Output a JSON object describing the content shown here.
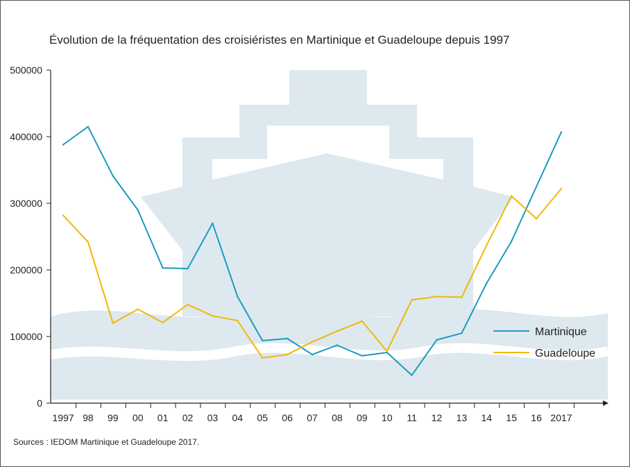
{
  "chart_data": {
    "type": "line",
    "title": "Évolution de la fréquentation des croisiéristes en Martinique et Guadeloupe depuis 1997",
    "source": "Sources : IEDOM Martinique et Guadeloupe 2017.",
    "x": [
      "1997",
      "98",
      "99",
      "00",
      "01",
      "02",
      "03",
      "04",
      "05",
      "06",
      "07",
      "08",
      "09",
      "10",
      "11",
      "12",
      "13",
      "14",
      "15",
      "16",
      "2017"
    ],
    "y_ticks": [
      "0",
      "100000",
      "200000",
      "300000",
      "400000",
      "500000"
    ],
    "ylim": [
      0,
      500000
    ],
    "grid": false,
    "legend_position": "bottom-right",
    "series": [
      {
        "name": "Martinique",
        "color": "#1a9bbf",
        "values": [
          388000,
          415000,
          341000,
          290000,
          203000,
          202000,
          270000,
          160000,
          94000,
          97000,
          73000,
          87000,
          71000,
          76000,
          42000,
          95000,
          105000,
          180000,
          243000,
          325000,
          407000
        ]
      },
      {
        "name": "Guadeloupe",
        "color": "#f2b705",
        "values": [
          282000,
          242000,
          120000,
          141000,
          121000,
          148000,
          131000,
          124000,
          68000,
          73000,
          92000,
          108000,
          123000,
          78000,
          155000,
          160000,
          159000,
          237000,
          311000,
          277000,
          322000
        ]
      }
    ]
  }
}
